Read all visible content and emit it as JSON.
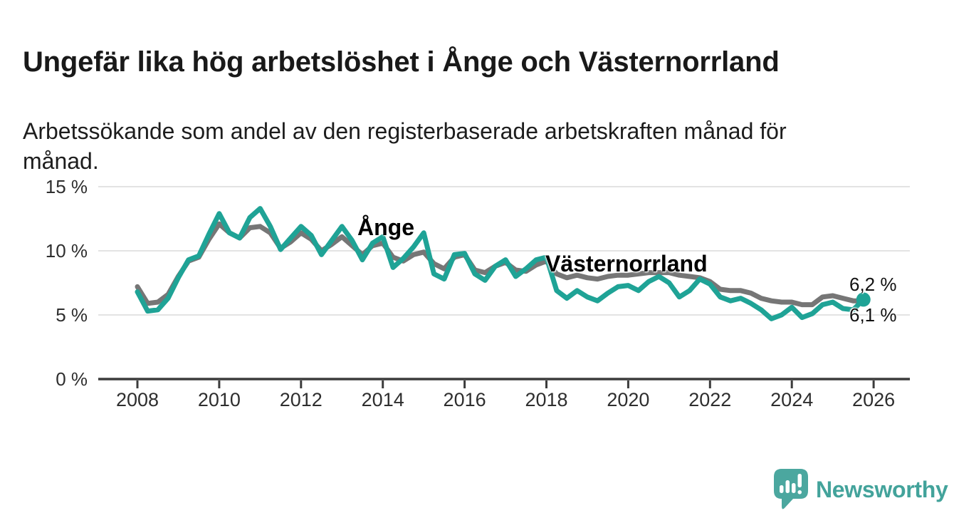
{
  "header": {
    "title": "Ungefär lika hög arbetslöshet i Ånge och Västernorrland",
    "subtitle": "Arbetssökande som andel av den registerbaserade arbetskraften månad för månad."
  },
  "branding": {
    "logo_text": "Newsworthy",
    "logo_icon": "bar-chart-speech-bubble-icon",
    "logo_color": "#43a39b"
  },
  "chart_data": {
    "type": "line",
    "unit": "%",
    "grid": "horizontal",
    "legend_position": "inline-series-labels",
    "x_axis": {
      "ticks": [
        "2008",
        "2010",
        "2012",
        "2014",
        "2016",
        "2018",
        "2020",
        "2022",
        "2024",
        "2026"
      ]
    },
    "y_axis": {
      "ticks": [
        0,
        5,
        10,
        15
      ],
      "labels": [
        "0 %",
        "5 %",
        "10 %",
        "15 %"
      ],
      "range": [
        0,
        16.5
      ]
    },
    "x_start": 2008.0,
    "x_step_years": 0.25,
    "series": [
      {
        "name": "Västernorrland",
        "color": "#767676",
        "end_label": "6,1 %",
        "end_dot": false,
        "values": [
          7.2,
          5.9,
          6.0,
          6.6,
          8.0,
          9.2,
          9.5,
          10.9,
          12.1,
          11.4,
          11.0,
          11.8,
          11.9,
          11.4,
          10.2,
          10.7,
          11.4,
          10.9,
          10.0,
          10.5,
          11.1,
          10.4,
          9.7,
          10.4,
          10.6,
          9.5,
          9.2,
          9.7,
          9.9,
          9.0,
          8.6,
          9.5,
          9.7,
          8.5,
          8.3,
          8.8,
          9.1,
          8.5,
          8.4,
          8.9,
          9.2,
          8.2,
          7.9,
          8.1,
          7.9,
          7.8,
          8.0,
          8.1,
          8.1,
          8.2,
          8.3,
          8.3,
          8.3,
          8.1,
          8.0,
          7.9,
          7.6,
          7.0,
          6.9,
          6.9,
          6.7,
          6.3,
          6.1,
          6.0,
          6.0,
          5.8,
          5.8,
          6.4,
          6.5,
          6.3,
          6.1,
          6.1
        ]
      },
      {
        "name": "Ånge",
        "color": "#1fa396",
        "end_label": "6,2 %",
        "end_dot": true,
        "values": [
          6.8,
          5.3,
          5.4,
          6.3,
          7.9,
          9.3,
          9.6,
          11.3,
          12.9,
          11.4,
          11.0,
          12.6,
          13.3,
          11.9,
          10.1,
          11.0,
          11.9,
          11.2,
          9.7,
          10.8,
          11.9,
          10.8,
          9.3,
          10.6,
          11.1,
          8.7,
          9.4,
          10.3,
          11.4,
          8.2,
          7.8,
          9.7,
          9.8,
          8.2,
          7.7,
          8.8,
          9.3,
          8.0,
          8.6,
          9.3,
          9.5,
          6.9,
          6.3,
          6.9,
          6.4,
          6.1,
          6.7,
          7.2,
          7.3,
          6.9,
          7.6,
          8.0,
          7.5,
          6.4,
          6.9,
          7.8,
          7.4,
          6.4,
          6.1,
          6.3,
          5.9,
          5.4,
          4.7,
          5.0,
          5.6,
          4.8,
          5.1,
          5.8,
          6.0,
          5.5,
          5.4,
          6.2
        ]
      }
    ]
  }
}
